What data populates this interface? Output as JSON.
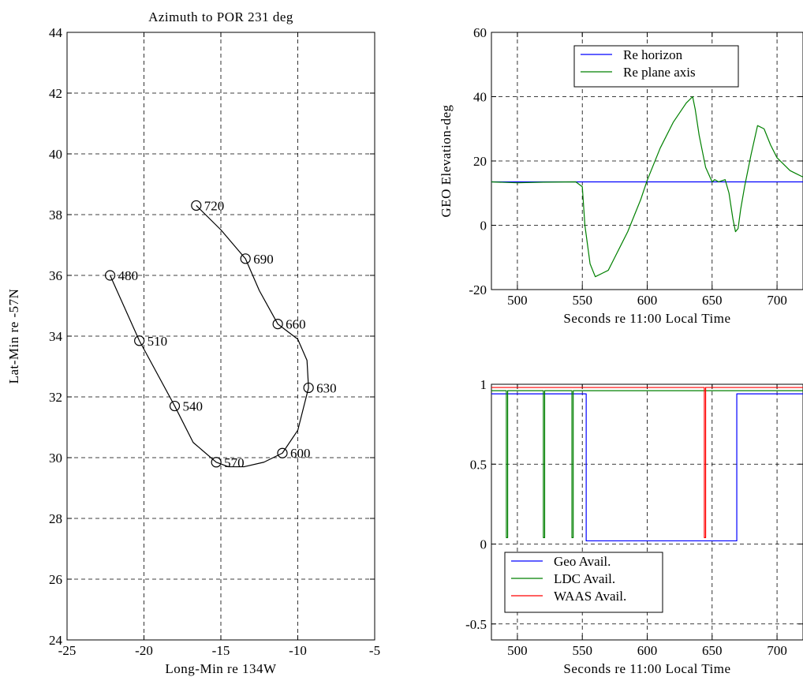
{
  "chart_data": [
    {
      "id": "track",
      "type": "line",
      "title": "Azimuth to POR 231 deg",
      "xlabel": "Long-Min re 134W",
      "ylabel": "Lat-Min re -57N",
      "xlim": [
        -25,
        -5
      ],
      "ylim": [
        24,
        44
      ],
      "xticks": [
        -25,
        -20,
        -15,
        -10,
        -5
      ],
      "yticks": [
        24,
        26,
        28,
        30,
        32,
        34,
        36,
        38,
        40,
        42,
        44
      ],
      "grid": true,
      "series": [
        {
          "color": "#000000",
          "x": [
            -22.2,
            -20.3,
            -18.0,
            -16.8,
            -15.3,
            -14.5,
            -13.5,
            -12.2,
            -11.0,
            -10.0,
            -9.3,
            -9.4,
            -10.0,
            -11.3,
            -12.5,
            -13.4,
            -15.0,
            -16.6
          ],
          "y": [
            36.0,
            33.85,
            31.7,
            30.5,
            29.85,
            29.7,
            29.7,
            29.85,
            30.15,
            30.9,
            32.3,
            33.2,
            33.9,
            34.4,
            35.5,
            36.55,
            37.5,
            38.3
          ]
        }
      ],
      "markers": [
        {
          "x": -22.2,
          "y": 36.0,
          "label": "480"
        },
        {
          "x": -20.3,
          "y": 33.85,
          "label": "510"
        },
        {
          "x": -18.0,
          "y": 31.7,
          "label": "540"
        },
        {
          "x": -15.3,
          "y": 29.85,
          "label": "570"
        },
        {
          "x": -11.0,
          "y": 30.15,
          "label": "600"
        },
        {
          "x": -9.3,
          "y": 32.3,
          "label": "630"
        },
        {
          "x": -11.3,
          "y": 34.4,
          "label": "660"
        },
        {
          "x": -13.4,
          "y": 36.55,
          "label": "690"
        },
        {
          "x": -16.6,
          "y": 38.3,
          "label": "720"
        }
      ]
    },
    {
      "id": "elevation",
      "type": "line",
      "title": "",
      "xlabel": "Seconds re 11:00 Local Time",
      "ylabel": "GEO Elevation-deg",
      "xlim": [
        480,
        720
      ],
      "ylim": [
        -20,
        60
      ],
      "xticks": [
        500,
        550,
        600,
        650,
        700
      ],
      "yticks": [
        -20,
        0,
        20,
        40,
        60
      ],
      "grid": true,
      "legend": "top-center",
      "series": [
        {
          "name": "Re horizon",
          "color": "#0000ff",
          "x": [
            480,
            720
          ],
          "y": [
            13.5,
            13.5
          ]
        },
        {
          "name": "Re plane axis",
          "color": "#008000",
          "x": [
            480,
            500,
            520,
            545,
            550,
            552,
            556,
            560,
            565,
            570,
            575,
            580,
            585,
            590,
            595,
            600,
            610,
            620,
            630,
            635,
            637,
            640,
            645,
            650,
            652,
            655,
            660,
            663,
            666,
            668,
            670,
            672,
            675,
            680,
            685,
            690,
            695,
            700,
            705,
            710,
            715,
            720
          ],
          "y": [
            13.5,
            13.2,
            13.4,
            13.5,
            12.0,
            0,
            -12,
            -16,
            -15,
            -14,
            -10,
            -6,
            -2,
            3,
            8,
            14,
            24,
            32,
            38,
            40,
            36,
            28,
            18,
            13.5,
            14.2,
            13.5,
            14.2,
            10,
            2,
            -2,
            -1,
            5,
            12,
            22,
            31,
            30,
            25,
            21,
            19,
            17,
            16,
            15
          ]
        }
      ]
    },
    {
      "id": "availability",
      "type": "line",
      "title": "",
      "xlabel": "Seconds re 11:00 Local Time",
      "ylabel": "",
      "xlim": [
        480,
        720
      ],
      "ylim": [
        -0.6,
        1.0
      ],
      "xticks": [
        500,
        550,
        600,
        650,
        700
      ],
      "yticks": [
        -0.5,
        0,
        0.5,
        1
      ],
      "grid": true,
      "legend": "bottom-left",
      "series": [
        {
          "name": "Geo Avail.",
          "color": "#0000ff",
          "x": [
            480,
            553,
            553,
            669,
            669,
            720
          ],
          "y": [
            0.94,
            0.94,
            0.02,
            0.02,
            0.94,
            0.94
          ]
        },
        {
          "name": "LDC Avail.",
          "color": "#008000",
          "x": [
            480,
            491.5,
            491.5,
            492.5,
            492.5,
            520,
            520,
            521,
            521,
            542,
            542,
            543,
            543,
            720
          ],
          "y": [
            0.96,
            0.96,
            0.04,
            0.04,
            0.96,
            0.96,
            0.04,
            0.04,
            0.96,
            0.96,
            0.04,
            0.04,
            0.96,
            0.96
          ]
        },
        {
          "name": "WAAS Avail.",
          "color": "#ff0000",
          "x": [
            480,
            644,
            644,
            645,
            645,
            720
          ],
          "y": [
            0.98,
            0.98,
            0.04,
            0.04,
            0.98,
            0.98
          ]
        }
      ]
    }
  ]
}
